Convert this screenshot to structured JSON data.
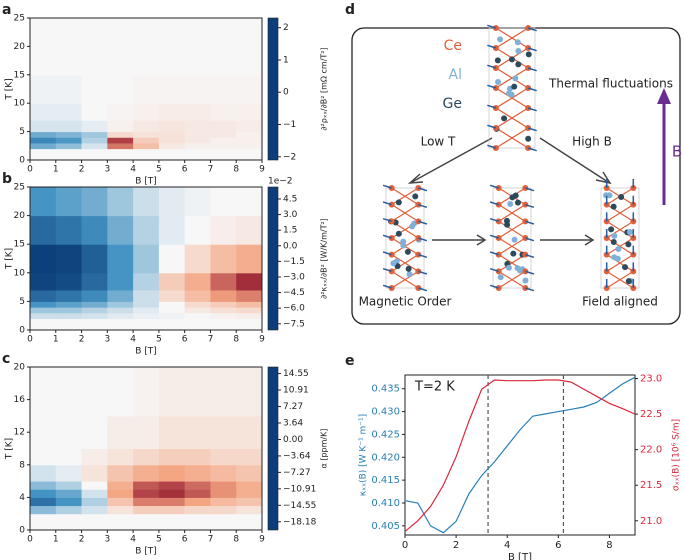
{
  "chart_data": [
    {
      "type": "heatmap",
      "label": "a",
      "xlabel": "B [T]",
      "ylabel": "T [K]",
      "colorbar_label": "∂²ρₓₓ/∂B² [mΩ cm/T²]",
      "xlim": [
        0,
        9
      ],
      "ylim": [
        0,
        25
      ],
      "xticks": [
        0,
        1,
        2,
        3,
        4,
        5,
        6,
        7,
        8,
        9
      ],
      "yticks": [
        0,
        5,
        10,
        15,
        20,
        25
      ],
      "xbins": [
        0,
        1,
        2,
        3,
        4,
        5,
        6,
        7,
        8,
        9
      ],
      "ybins": [
        2,
        3,
        4,
        5,
        7,
        10,
        15,
        20,
        25
      ],
      "z": [
        [
          -0.8,
          -0.6,
          -0.2,
          1.5,
          0.8,
          0.2,
          0.1,
          0.1,
          0.1
        ],
        [
          -1.2,
          -1.0,
          -0.4,
          1.9,
          0.6,
          0.3,
          0.2,
          0.1,
          0.1
        ],
        [
          -0.8,
          -0.7,
          -0.5,
          0.4,
          0.3,
          0.3,
          0.2,
          0.2,
          0.1
        ],
        [
          -0.2,
          -0.2,
          -0.1,
          0.1,
          0.2,
          0.25,
          0.2,
          0.2,
          0.15
        ],
        [
          -0.1,
          -0.1,
          0,
          0.05,
          0.1,
          0.15,
          0.15,
          0.1,
          0.1
        ],
        [
          -0.05,
          -0.05,
          0,
          0,
          0.05,
          0.05,
          0.05,
          0.05,
          0.05
        ],
        [
          0,
          0,
          0,
          0,
          0,
          0,
          0,
          0,
          0
        ],
        [
          0,
          0,
          0,
          0,
          0,
          0,
          0,
          0,
          0
        ]
      ],
      "zlim": [
        -2.1,
        2.3
      ],
      "zticks": [
        {
          "value": -2,
          "label": "−2"
        },
        {
          "value": -1,
          "label": "−1"
        },
        0,
        1,
        2
      ],
      "cmap": [
        "#0b3e7a",
        "#4393c3",
        "#f7f7f7",
        "#f4a582",
        "#8b0a26"
      ]
    },
    {
      "type": "heatmap",
      "label": "b",
      "xlabel": "B [T]",
      "ylabel": "T [K]",
      "colorbar_label": "∂²κₓₓ/∂B² [W/K/m/T²]",
      "offset_text": "1e−2",
      "xlim": [
        0,
        9
      ],
      "ylim": [
        0,
        25
      ],
      "xticks": [
        0,
        1,
        2,
        3,
        4,
        5,
        6,
        7,
        8,
        9
      ],
      "yticks": [
        0,
        5,
        10,
        15,
        20,
        25
      ],
      "xbins": [
        0,
        1,
        2,
        3,
        4,
        5,
        6,
        7,
        8,
        9
      ],
      "ybins": [
        2,
        3,
        4,
        5,
        7,
        10,
        15,
        20,
        25
      ],
      "z": [
        [
          -1,
          -1,
          -0.8,
          -0.5,
          -0.3,
          -0.2,
          0,
          0.2,
          0.3
        ],
        [
          -2,
          -2,
          -1.5,
          -1,
          -0.5,
          0,
          0.5,
          0.8,
          1
        ],
        [
          -4,
          -3.5,
          -3,
          -2,
          -1,
          0,
          1,
          1.5,
          2
        ],
        [
          -6,
          -5.5,
          -4.5,
          -3,
          -1,
          1,
          2,
          3,
          3.5
        ],
        [
          -7.8,
          -7.5,
          -6,
          -4,
          -1.5,
          1.5,
          2.5,
          4,
          5
        ],
        [
          -8,
          -7.8,
          -6.5,
          -4,
          -2,
          0,
          1,
          2,
          2.5
        ],
        [
          -6,
          -5.5,
          -4.5,
          -3,
          -1.5,
          -0.5,
          0,
          0.3,
          0.5
        ],
        [
          -4,
          -3.5,
          -3,
          -2,
          -1,
          -0.5,
          -0.2,
          0,
          0
        ]
      ],
      "zlim": [
        -8.1,
        5.65
      ],
      "zticks": [
        4.5,
        {
          "value": 3,
          "label": "3.0"
        },
        1.5,
        {
          "value": 0,
          "label": "0.0"
        },
        {
          "value": -1.5,
          "label": "−1.5"
        },
        {
          "value": -3,
          "label": "−3.0"
        },
        {
          "value": -4.5,
          "label": "−4.5"
        },
        {
          "value": -6,
          "label": "−6.0"
        },
        {
          "value": -7.5,
          "label": "−7.5"
        }
      ],
      "cmap": [
        "#0b3e7a",
        "#4393c3",
        "#f7f7f7",
        "#f4a582",
        "#8b0a26"
      ]
    },
    {
      "type": "heatmap",
      "label": "c",
      "xlabel": "B [T]",
      "ylabel": "T [K]",
      "colorbar_label": "α [ppm/K]",
      "xlim": [
        0,
        9
      ],
      "ylim": [
        0,
        20
      ],
      "xticks": [
        0,
        1,
        2,
        3,
        4,
        5,
        6,
        7,
        8,
        9
      ],
      "yticks": [
        0,
        4,
        8,
        12,
        16,
        20
      ],
      "xbins": [
        0,
        1,
        2,
        3,
        4,
        5,
        6,
        7,
        8,
        9
      ],
      "ybins": [
        2,
        3,
        4,
        5,
        6,
        8,
        10,
        14,
        20
      ],
      "z": [
        [
          -6,
          -4,
          -2,
          2,
          4,
          4,
          3,
          3,
          2
        ],
        [
          -14,
          -10,
          -4,
          5,
          10,
          10,
          8,
          6,
          5
        ],
        [
          -10,
          -8,
          -2,
          8,
          13,
          14,
          12,
          9,
          7
        ],
        [
          -6,
          -4,
          0,
          7,
          12,
          13,
          11,
          9,
          7
        ],
        [
          -2,
          -1,
          2,
          5,
          7,
          8,
          7,
          6,
          5
        ],
        [
          0,
          0,
          1,
          2,
          3,
          4,
          4,
          3,
          3
        ],
        [
          0,
          0,
          0,
          1,
          1,
          2,
          2,
          2,
          2
        ],
        [
          0,
          0,
          0,
          0,
          0.5,
          1,
          1,
          1,
          1
        ]
      ],
      "zlim": [
        -20,
        16
      ],
      "zticks": [
        14.55,
        10.91,
        7.27,
        3.64,
        {
          "value": 0,
          "label": "0.00"
        },
        {
          "value": -3.64,
          "label": "−3.64"
        },
        {
          "value": -7.27,
          "label": "−7.27"
        },
        {
          "value": -10.91,
          "label": "−10.91"
        },
        {
          "value": -14.55,
          "label": "−14.55"
        },
        {
          "value": -18.18,
          "label": "−18.18"
        }
      ],
      "cmap": [
        "#0b3e7a",
        "#4393c3",
        "#f7f7f7",
        "#f4a582",
        "#8b0a26"
      ]
    },
    {
      "type": "line",
      "label": "e",
      "annotation": "T=2 K",
      "xlabel": "B [T]",
      "ylabel": "κₓₓ(B) [W K⁻¹ m⁻¹]",
      "y2label": "σₓₓ(B) [10⁶ S/m]",
      "x": [
        0,
        0.5,
        1,
        1.5,
        2,
        2.5,
        3,
        3.5,
        4,
        4.5,
        5,
        5.5,
        6,
        6.5,
        7,
        7.5,
        8,
        8.5,
        9
      ],
      "xlim": [
        0,
        9
      ],
      "xticks": [
        0,
        2,
        4,
        6,
        8
      ],
      "ylim": [
        0.403,
        0.438
      ],
      "yticks": [
        0.405,
        {
          "value": 0.41,
          "label": "0.410"
        },
        0.415,
        {
          "value": 0.42,
          "label": "0.420"
        },
        0.425,
        {
          "value": 0.43,
          "label": "0.430"
        },
        0.435
      ],
      "y2lim": [
        20.8,
        23.05
      ],
      "y2ticks": [
        {
          "value": 21,
          "label": "21.0"
        },
        21.5,
        {
          "value": 22,
          "label": "22.0"
        },
        22.5,
        {
          "value": 23,
          "label": "23.0"
        }
      ],
      "vlines": [
        3.25,
        6.2
      ],
      "series": [
        {
          "name": "κₓₓ(B)",
          "color": "#2a7fb8",
          "values": [
            0.4105,
            0.41,
            0.405,
            0.4035,
            0.406,
            0.412,
            0.416,
            0.419,
            0.4225,
            0.426,
            0.429,
            0.4295,
            0.43,
            0.4305,
            0.431,
            0.432,
            0.434,
            0.436,
            0.4375
          ]
        },
        {
          "name": "σₓₓ(B)",
          "color": "#d9283c",
          "axis": "y2",
          "values": [
            20.85,
            21.0,
            21.2,
            21.5,
            21.9,
            22.4,
            22.85,
            22.98,
            22.97,
            22.97,
            22.97,
            22.98,
            22.98,
            22.95,
            22.85,
            22.75,
            22.65,
            22.58,
            22.5
          ]
        }
      ]
    }
  ],
  "diagram": {
    "label": "d",
    "elements": {
      "ce": "Ce",
      "al": "Al",
      "ge": "Ge"
    },
    "thermal": "Thermal fluctuations",
    "low_t": "Low T",
    "high_b": "High B",
    "field_arrow": "B",
    "magnetic_order": "Magnetic Order",
    "field_aligned": "Field aligned"
  }
}
